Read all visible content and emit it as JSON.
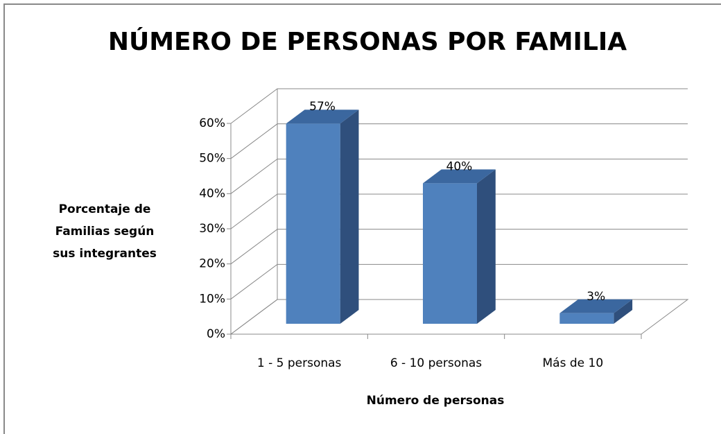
{
  "chart_data": {
    "type": "bar3d",
    "title": "NÚMERO DE PERSONAS POR FAMILIA",
    "x_label": "Número de personas",
    "y_label": "Porcentaje de Familias según sus integrantes",
    "categories": [
      "1 - 5 personas",
      "6 - 10 personas",
      "Más de 10"
    ],
    "values": [
      57,
      40,
      3
    ],
    "value_labels": [
      "57%",
      "40%",
      "3%"
    ],
    "color": "#4f81bd",
    "ylim": [
      0,
      60
    ],
    "yticks": [
      {
        "value": 0,
        "label": "0%"
      },
      {
        "value": 10,
        "label": "10%"
      },
      {
        "value": 20,
        "label": "20%"
      },
      {
        "value": 30,
        "label": "30%"
      },
      {
        "value": 40,
        "label": "40%"
      },
      {
        "value": 50,
        "label": "50%"
      },
      {
        "value": 60,
        "label": "60%"
      }
    ],
    "grid": true
  }
}
